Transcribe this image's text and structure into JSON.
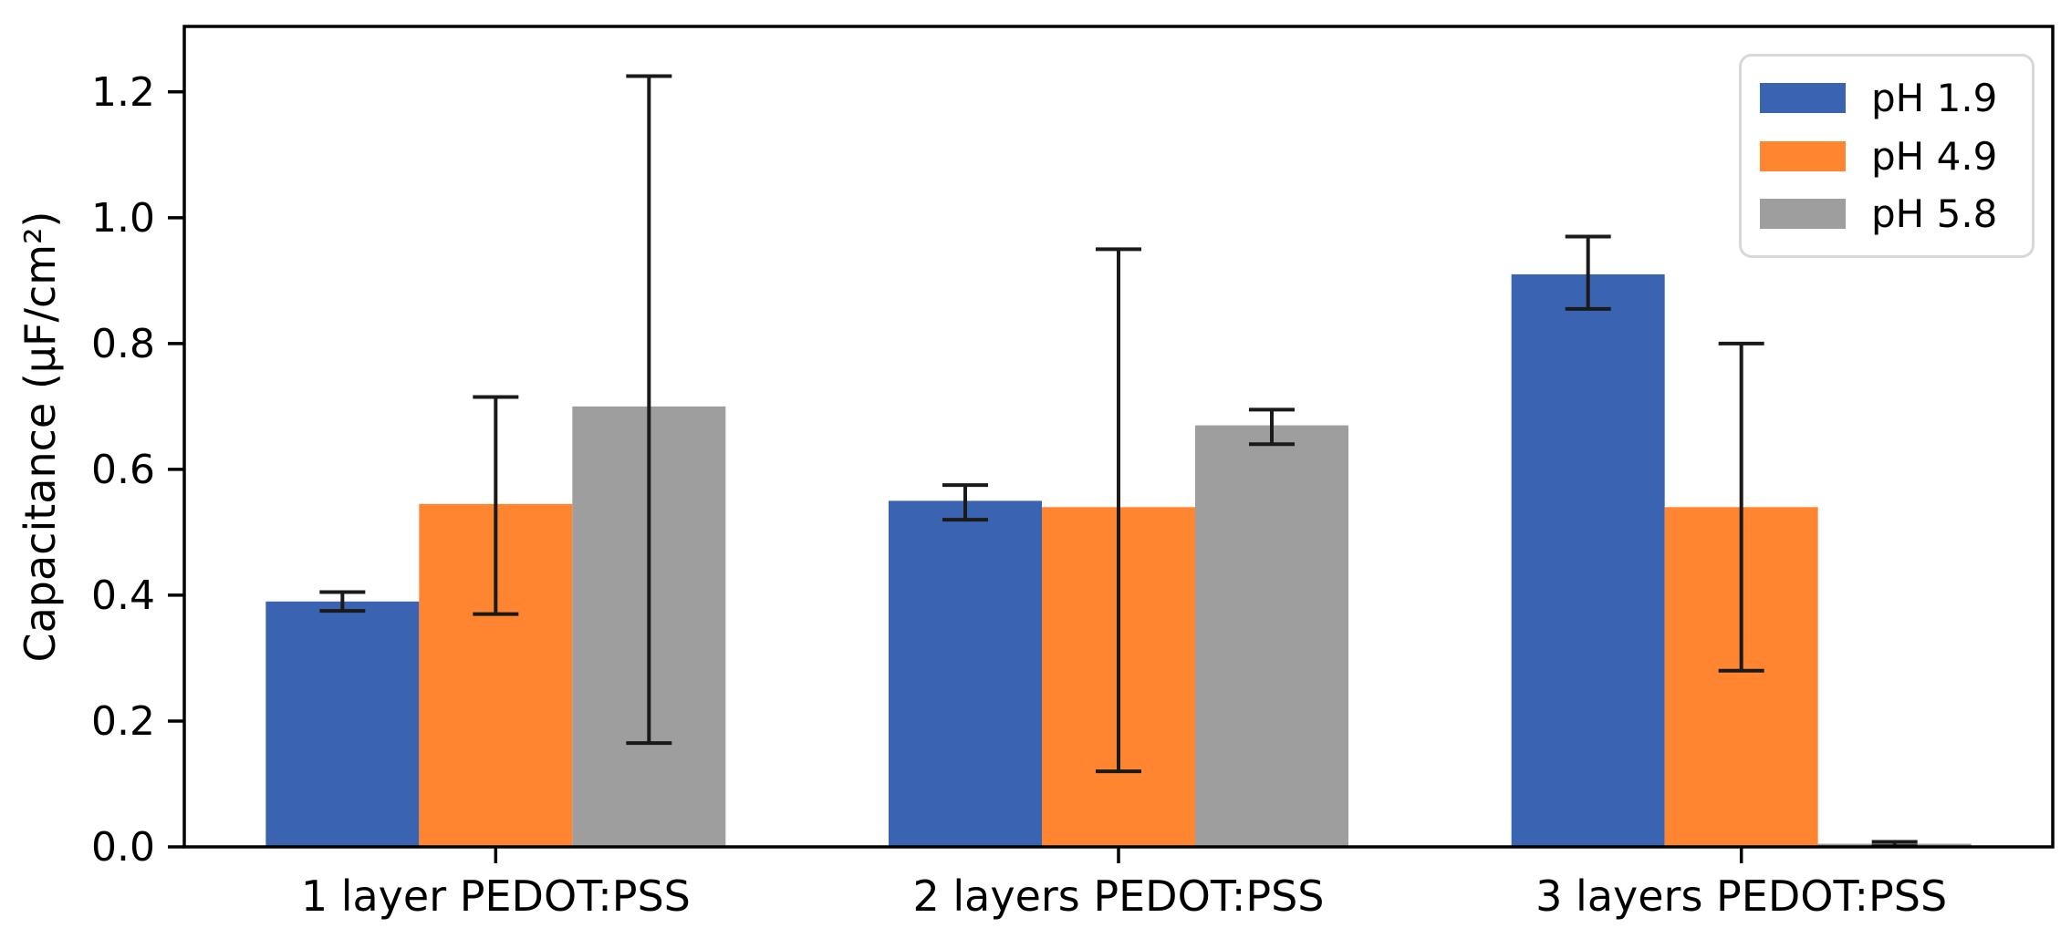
{
  "figure": {
    "background_color": "#ffffff",
    "axis_color": "#000000",
    "error_bar_color": "#1a1a1a",
    "legend_border_color": "#d8d8d8"
  },
  "chart_data": {
    "type": "bar",
    "title": "",
    "xlabel": "",
    "ylabel": "Capacitance (μF/cm²)",
    "categories": [
      "1 layer PEDOT:PSS",
      "2 layers PEDOT:PSS",
      "3 layers PEDOT:PSS"
    ],
    "series": [
      {
        "name": "pH 1.9",
        "color": "#3a63b2",
        "values": [
          0.39,
          0.55,
          0.91
        ],
        "error_low": [
          0.375,
          0.52,
          0.855
        ],
        "error_high": [
          0.405,
          0.575,
          0.97
        ]
      },
      {
        "name": "pH 4.9",
        "color": "#ff8531",
        "values": [
          0.545,
          0.54,
          0.54
        ],
        "error_low": [
          0.37,
          0.12,
          0.28
        ],
        "error_high": [
          0.715,
          0.95,
          0.8
        ]
      },
      {
        "name": "pH 5.8",
        "color": "#9e9e9e",
        "values": [
          0.7,
          0.67,
          0.005
        ],
        "error_low": [
          0.165,
          0.64,
          0.001
        ],
        "error_high": [
          1.225,
          0.695,
          0.008
        ]
      }
    ],
    "ylim": [
      0,
      1.304
    ],
    "yticks": [
      0.0,
      0.2,
      0.4,
      0.6,
      0.8,
      1.0,
      1.2
    ],
    "ytick_labels": [
      "0.0",
      "0.2",
      "0.4",
      "0.6",
      "0.8",
      "1.0",
      "1.2"
    ],
    "grid": false,
    "legend": {
      "position": "upper right",
      "entries": [
        "pH 1.9",
        "pH 4.9",
        "pH 5.8"
      ]
    }
  }
}
